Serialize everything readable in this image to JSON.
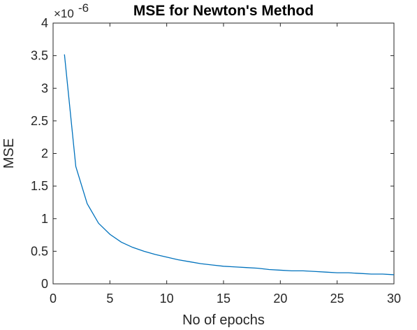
{
  "chart_data": {
    "type": "line",
    "title": "MSE for Newton's Method",
    "xlabel": "No of epochs",
    "ylabel": "MSE",
    "y_exponent_label": "×10",
    "y_exponent_power": "-6",
    "xlim": [
      0,
      30
    ],
    "ylim": [
      0,
      4
    ],
    "xticks": [
      "0",
      "5",
      "10",
      "15",
      "20",
      "25",
      "30"
    ],
    "yticks": [
      "0",
      "0.5",
      "1",
      "1.5",
      "2",
      "2.5",
      "3",
      "3.5",
      "4"
    ],
    "grid": false,
    "box": true,
    "line_color": "#0072BD",
    "series": [
      {
        "x": [
          1,
          2,
          3,
          4,
          5,
          6,
          7,
          8,
          9,
          10,
          11,
          12,
          13,
          14,
          15,
          16,
          17,
          18,
          19,
          20,
          21,
          22,
          23,
          24,
          25,
          26,
          27,
          28,
          29,
          30
        ],
        "values": [
          3.52,
          1.8,
          1.23,
          0.93,
          0.76,
          0.64,
          0.56,
          0.5,
          0.45,
          0.41,
          0.37,
          0.34,
          0.31,
          0.29,
          0.27,
          0.26,
          0.25,
          0.24,
          0.22,
          0.21,
          0.2,
          0.2,
          0.19,
          0.18,
          0.17,
          0.17,
          0.16,
          0.15,
          0.15,
          0.14
        ]
      }
    ]
  }
}
